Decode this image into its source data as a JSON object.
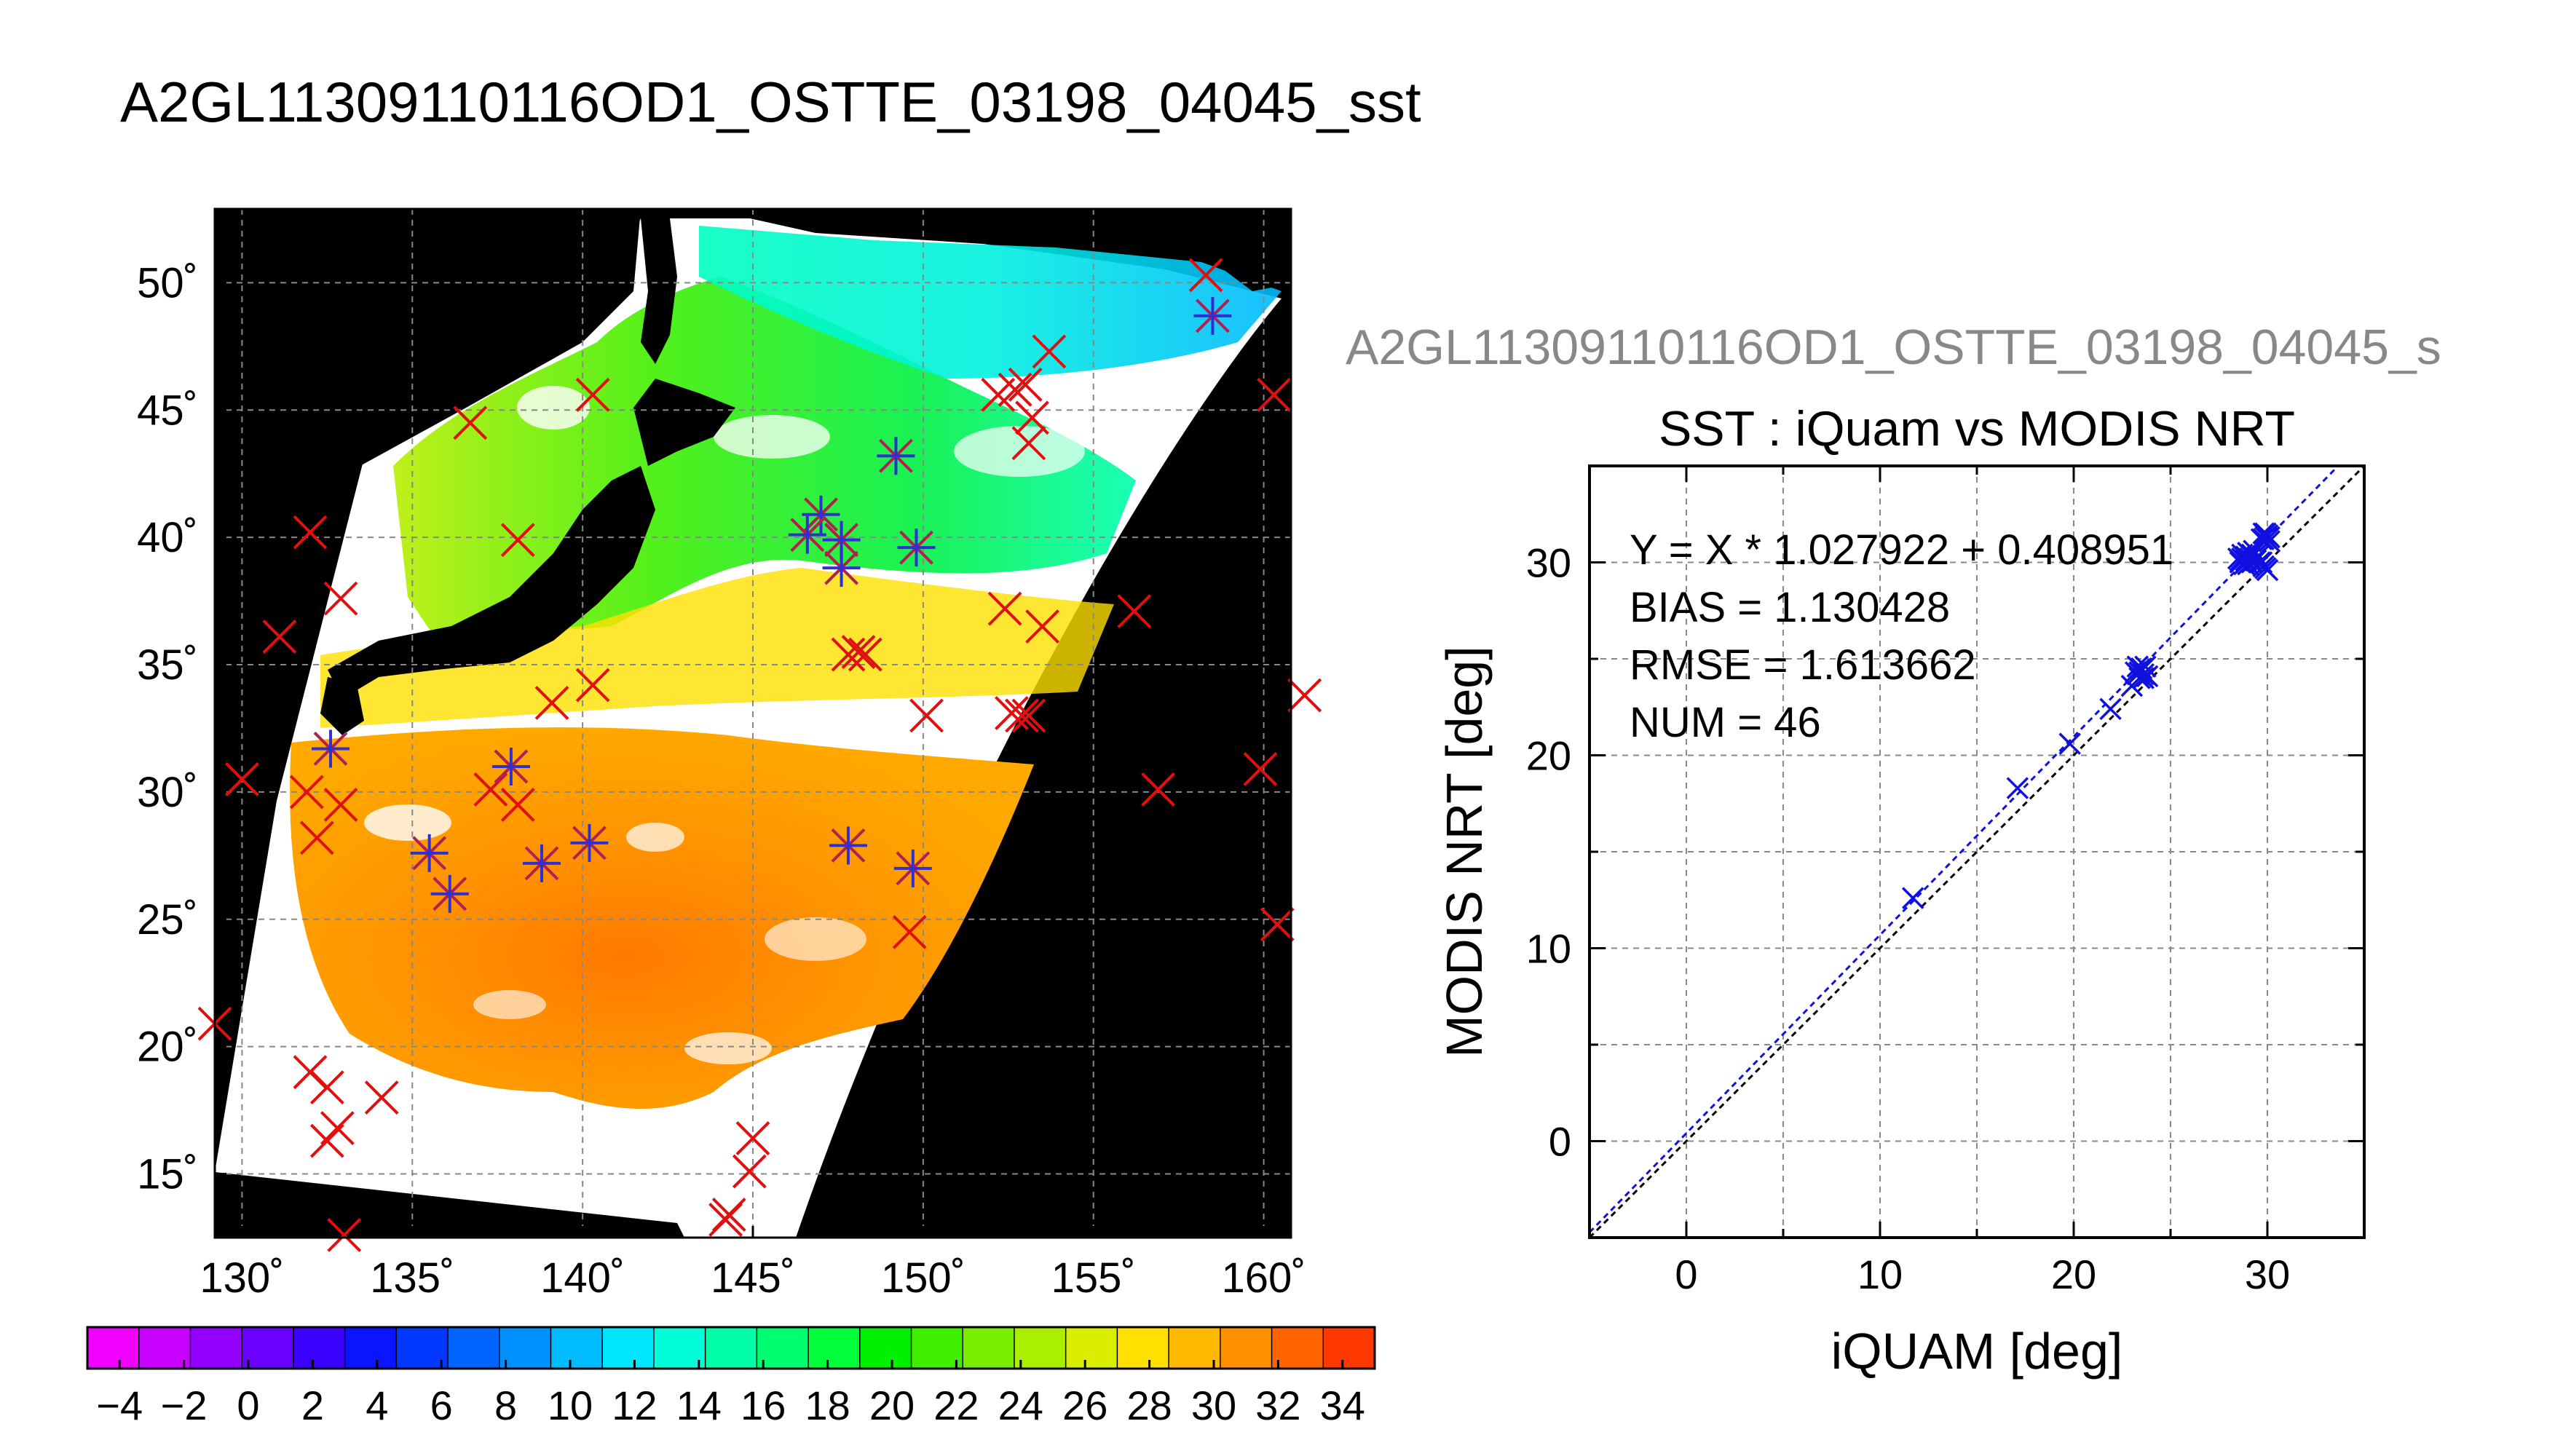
{
  "title": "A2GL11309110116OD1_OSTTE_03198_04045_sst",
  "colors": {
    "match_x": "#e01010",
    "match_star": "#3030d0",
    "scatter": "#1010e0",
    "background": "#000000",
    "cloud": "#ffffff"
  },
  "chart_data": [
    {
      "type": "heatmap",
      "title": "",
      "xlabel": "",
      "ylabel": "",
      "xlim": [
        129.2,
        160.8
      ],
      "ylim": [
        12.5,
        52.9
      ],
      "x_ticks": [
        130,
        135,
        140,
        145,
        150,
        155,
        160
      ],
      "x_tick_labels": [
        "130˚",
        "135˚",
        "140˚",
        "145˚",
        "150˚",
        "155˚",
        "160˚"
      ],
      "y_ticks": [
        15,
        20,
        25,
        30,
        35,
        40,
        45,
        50
      ],
      "y_tick_labels": [
        "15˚",
        "20˚",
        "25˚",
        "30˚",
        "35˚",
        "40˚",
        "45˚",
        "50˚"
      ],
      "grid": true,
      "colorbar": {
        "range": [
          -5,
          35
        ],
        "ticks": [
          -4,
          -2,
          0,
          2,
          4,
          6,
          8,
          10,
          12,
          14,
          16,
          18,
          20,
          22,
          24,
          26,
          28,
          30,
          32,
          34
        ],
        "tick_labels": [
          "−4",
          "−2",
          "0",
          "2",
          "4",
          "6",
          "8",
          "10",
          "12",
          "14",
          "16",
          "18",
          "20",
          "22",
          "24",
          "26",
          "28",
          "30",
          "32",
          "34"
        ],
        "colors": [
          "#f000ff",
          "#c800ff",
          "#9400ff",
          "#6a00ff",
          "#3c00ff",
          "#0a14ff",
          "#0038ff",
          "#0064ff",
          "#0090ff",
          "#00bcff",
          "#00e6ff",
          "#00ffd8",
          "#00ffa8",
          "#00ff70",
          "#00ff38",
          "#00f000",
          "#40ee00",
          "#78ee00",
          "#aaee00",
          "#dcee00",
          "#ffe000",
          "#ffb800",
          "#ff9000",
          "#ff6400",
          "#ff3800"
        ]
      },
      "x_markers": [
        {
          "lon": 158.3,
          "lat": 50.3
        },
        {
          "lon": 153.7,
          "lat": 47.3
        },
        {
          "lon": 160.3,
          "lat": 45.6
        },
        {
          "lon": 152.2,
          "lat": 45.6
        },
        {
          "lon": 152.7,
          "lat": 45.8
        },
        {
          "lon": 153.0,
          "lat": 46.0
        },
        {
          "lon": 153.2,
          "lat": 44.7
        },
        {
          "lon": 153.1,
          "lat": 43.7
        },
        {
          "lon": 140.3,
          "lat": 45.6
        },
        {
          "lon": 136.7,
          "lat": 44.5
        },
        {
          "lon": 132.0,
          "lat": 40.2
        },
        {
          "lon": 138.1,
          "lat": 39.9
        },
        {
          "lon": 131.1,
          "lat": 36.1
        },
        {
          "lon": 132.9,
          "lat": 37.6
        },
        {
          "lon": 152.4,
          "lat": 37.2
        },
        {
          "lon": 153.5,
          "lat": 36.5
        },
        {
          "lon": 156.2,
          "lat": 37.1
        },
        {
          "lon": 147.8,
          "lat": 35.4
        },
        {
          "lon": 148.1,
          "lat": 35.5
        },
        {
          "lon": 148.3,
          "lat": 35.4
        },
        {
          "lon": 140.3,
          "lat": 34.2
        },
        {
          "lon": 139.1,
          "lat": 33.5
        },
        {
          "lon": 150.1,
          "lat": 33.0
        },
        {
          "lon": 152.6,
          "lat": 33.1
        },
        {
          "lon": 152.9,
          "lat": 33.0
        },
        {
          "lon": 153.1,
          "lat": 33.0
        },
        {
          "lon": 161.2,
          "lat": 33.8
        },
        {
          "lon": 130.0,
          "lat": 30.5
        },
        {
          "lon": 131.9,
          "lat": 30.0
        },
        {
          "lon": 132.9,
          "lat": 29.5
        },
        {
          "lon": 132.2,
          "lat": 28.2
        },
        {
          "lon": 137.3,
          "lat": 30.1
        },
        {
          "lon": 138.1,
          "lat": 29.5
        },
        {
          "lon": 156.9,
          "lat": 30.1
        },
        {
          "lon": 159.9,
          "lat": 30.9
        },
        {
          "lon": 149.6,
          "lat": 24.5
        },
        {
          "lon": 160.4,
          "lat": 24.8
        },
        {
          "lon": 129.2,
          "lat": 20.9
        },
        {
          "lon": 132.0,
          "lat": 19.0
        },
        {
          "lon": 132.5,
          "lat": 18.4
        },
        {
          "lon": 134.1,
          "lat": 18.0
        },
        {
          "lon": 132.8,
          "lat": 16.8
        },
        {
          "lon": 132.5,
          "lat": 16.3
        },
        {
          "lon": 145.0,
          "lat": 16.4
        },
        {
          "lon": 144.9,
          "lat": 15.1
        },
        {
          "lon": 144.3,
          "lat": 13.4
        },
        {
          "lon": 144.2,
          "lat": 13.2
        },
        {
          "lon": 133.0,
          "lat": 12.6
        }
      ],
      "star_markers": [
        {
          "lon": 158.5,
          "lat": 48.7
        },
        {
          "lon": 149.2,
          "lat": 43.2
        },
        {
          "lon": 147.0,
          "lat": 40.9
        },
        {
          "lon": 146.6,
          "lat": 40.1
        },
        {
          "lon": 147.6,
          "lat": 39.9
        },
        {
          "lon": 147.6,
          "lat": 38.8
        },
        {
          "lon": 149.8,
          "lat": 39.6
        },
        {
          "lon": 132.6,
          "lat": 31.7
        },
        {
          "lon": 137.9,
          "lat": 31.0
        },
        {
          "lon": 135.5,
          "lat": 27.6
        },
        {
          "lon": 136.1,
          "lat": 26.0
        },
        {
          "lon": 138.8,
          "lat": 27.2
        },
        {
          "lon": 140.2,
          "lat": 28.0
        },
        {
          "lon": 147.8,
          "lat": 27.9
        },
        {
          "lon": 149.7,
          "lat": 27.0
        }
      ]
    },
    {
      "type": "scatter",
      "title": "SST : iQuam vs MODIS NRT",
      "subtitle": "A2GL11309110116OD1_OSTTE_03198_04045_s",
      "xlabel": "iQUAM [deg]",
      "ylabel": "MODIS NRT [deg]",
      "xlim": [
        -5,
        35
      ],
      "ylim": [
        -5,
        35
      ],
      "x_ticks": [
        0,
        10,
        20,
        30
      ],
      "y_ticks": [
        0,
        10,
        20,
        30
      ],
      "grid": true,
      "stats": [
        "Y = X * 1.027922 + 0.408951",
        "BIAS = 1.130428",
        "RMSE = 1.613662",
        "NUM = 46"
      ],
      "fit": {
        "slope": 1.027922,
        "intercept": 0.408951
      },
      "points": [
        {
          "x": 11.7,
          "y": 12.6
        },
        {
          "x": 17.1,
          "y": 18.3
        },
        {
          "x": 19.8,
          "y": 20.6
        },
        {
          "x": 21.9,
          "y": 22.4
        },
        {
          "x": 23.0,
          "y": 23.6
        },
        {
          "x": 23.2,
          "y": 24.3
        },
        {
          "x": 23.3,
          "y": 24.6
        },
        {
          "x": 23.4,
          "y": 24.0
        },
        {
          "x": 23.5,
          "y": 24.5
        },
        {
          "x": 23.6,
          "y": 24.2
        },
        {
          "x": 23.7,
          "y": 24.6
        },
        {
          "x": 23.8,
          "y": 24.1
        },
        {
          "x": 28.5,
          "y": 30.2
        },
        {
          "x": 28.6,
          "y": 30.1
        },
        {
          "x": 28.7,
          "y": 30.4
        },
        {
          "x": 28.8,
          "y": 29.9
        },
        {
          "x": 28.9,
          "y": 30.3
        },
        {
          "x": 29.0,
          "y": 30.5
        },
        {
          "x": 29.1,
          "y": 30.2
        },
        {
          "x": 29.2,
          "y": 30.0
        },
        {
          "x": 29.3,
          "y": 30.6
        },
        {
          "x": 29.4,
          "y": 30.2
        },
        {
          "x": 29.5,
          "y": 30.3
        },
        {
          "x": 29.6,
          "y": 30.0
        },
        {
          "x": 29.7,
          "y": 31.2
        },
        {
          "x": 29.8,
          "y": 31.5
        },
        {
          "x": 29.9,
          "y": 31.3
        },
        {
          "x": 30.0,
          "y": 31.4
        },
        {
          "x": 30.1,
          "y": 31.1
        },
        {
          "x": 29.9,
          "y": 29.7
        },
        {
          "x": 30.0,
          "y": 29.6
        },
        {
          "x": 29.8,
          "y": 29.8
        },
        {
          "x": 28.6,
          "y": 30.0
        },
        {
          "x": 28.9,
          "y": 30.1
        },
        {
          "x": 29.0,
          "y": 29.9
        },
        {
          "x": 29.2,
          "y": 30.4
        },
        {
          "x": 28.7,
          "y": 30.2
        },
        {
          "x": 29.4,
          "y": 30.1
        },
        {
          "x": 23.5,
          "y": 24.4
        },
        {
          "x": 23.3,
          "y": 24.2
        },
        {
          "x": 23.6,
          "y": 24.0
        },
        {
          "x": 23.4,
          "y": 24.3
        },
        {
          "x": 29.9,
          "y": 31.5
        },
        {
          "x": 30.1,
          "y": 31.3
        },
        {
          "x": 29.8,
          "y": 31.2
        },
        {
          "x": 29.7,
          "y": 30.0
        }
      ]
    }
  ]
}
